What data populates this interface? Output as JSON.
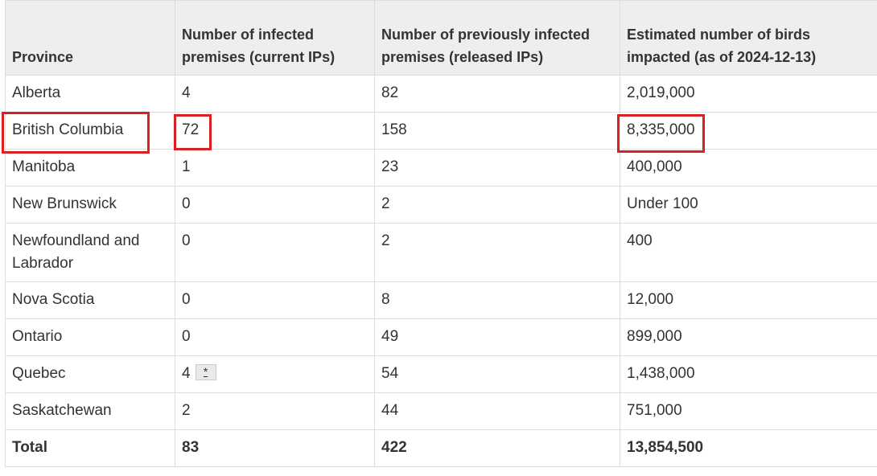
{
  "table": {
    "header": [
      "Province",
      "Number of infected premises (current IPs)",
      "Number of previously infected premises (released IPs)",
      "Estimated number of birds impacted (as of 2024-12-13)"
    ],
    "rows": [
      [
        "Alberta",
        "4",
        "82",
        "2,019,000"
      ],
      [
        "British Columbia",
        "72",
        "158",
        "8,335,000"
      ],
      [
        "Manitoba",
        "1",
        "23",
        "400,000"
      ],
      [
        "New Brunswick",
        "0",
        "2",
        "Under 100"
      ],
      [
        "Newfoundland and Labrador",
        "0",
        "2",
        "400"
      ],
      [
        "Nova Scotia",
        "0",
        "8",
        "12,000"
      ],
      [
        "Ontario",
        "0",
        "49",
        "899,000"
      ],
      [
        "Quebec",
        "4",
        "54",
        "1,438,000"
      ],
      [
        "Saskatchewan",
        "2",
        "44",
        "751,000"
      ]
    ],
    "footnote_link": "*",
    "total": [
      "Total",
      "83",
      "422",
      "13,854,500"
    ]
  }
}
